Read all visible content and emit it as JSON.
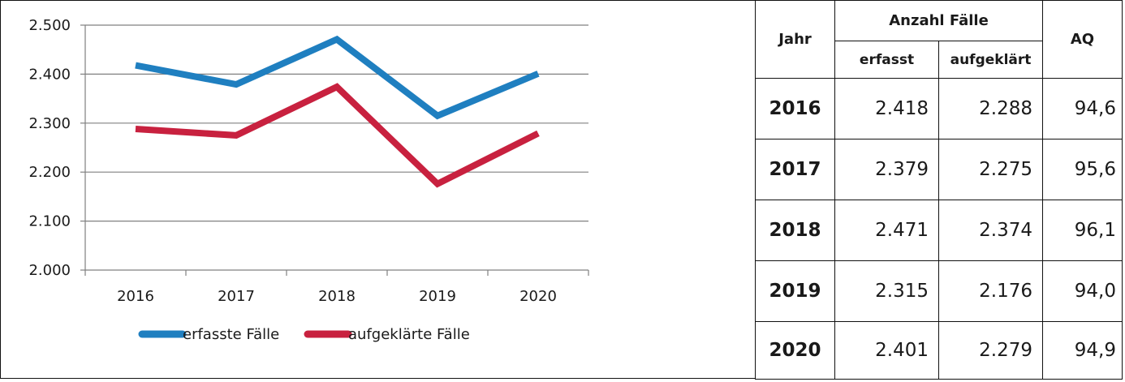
{
  "chart_data": {
    "type": "line",
    "categories": [
      "2016",
      "2017",
      "2018",
      "2019",
      "2020"
    ],
    "series": [
      {
        "name": "erfasste Fälle",
        "values": [
          2418,
          2379,
          2471,
          2315,
          2401
        ],
        "color": "#1f7fc0"
      },
      {
        "name": "aufgeklärte Fälle",
        "values": [
          2288,
          2275,
          2374,
          2176,
          2279
        ],
        "color": "#c8213f"
      }
    ],
    "ylim": [
      2000,
      2500
    ],
    "yticks": [
      {
        "value": 2500,
        "label": "2.500"
      },
      {
        "value": 2400,
        "label": "2.400"
      },
      {
        "value": 2300,
        "label": "2.300"
      },
      {
        "value": 2200,
        "label": "2.200"
      },
      {
        "value": 2100,
        "label": "2.100"
      },
      {
        "value": 2000,
        "label": "2.000"
      }
    ],
    "grid": true,
    "legend_position": "bottom",
    "gridline_color": "#808080",
    "axis_color": "#808080"
  },
  "table": {
    "header": {
      "jahr": "Jahr",
      "anzahl": "Anzahl Fälle",
      "erfasst": "erfasst",
      "aufgeklaert": "aufgeklärt",
      "aq": "AQ"
    },
    "rows": [
      {
        "jahr": "2016",
        "erfasst": "2.418",
        "aufgeklaert": "2.288",
        "aq": "94,6"
      },
      {
        "jahr": "2017",
        "erfasst": "2.379",
        "aufgeklaert": "2.275",
        "aq": "95,6"
      },
      {
        "jahr": "2018",
        "erfasst": "2.471",
        "aufgeklaert": "2.374",
        "aq": "96,1"
      },
      {
        "jahr": "2019",
        "erfasst": "2.315",
        "aufgeklaert": "2.176",
        "aq": "94,0"
      },
      {
        "jahr": "2020",
        "erfasst": "2.401",
        "aufgeklaert": "2.279",
        "aq": "94,9"
      }
    ]
  }
}
